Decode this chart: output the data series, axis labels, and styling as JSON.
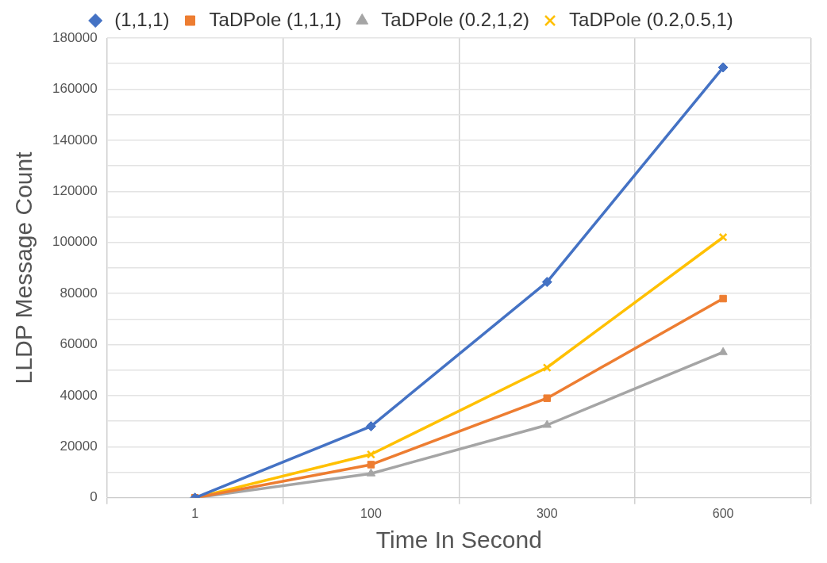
{
  "chart_data": {
    "type": "line",
    "xlabel": "Time In Second",
    "ylabel": "LLDP Message Count",
    "categories": [
      "1",
      "100",
      "300",
      "600"
    ],
    "series": [
      {
        "name": "(1,1,1)",
        "color": "#4472c4",
        "marker": "diamond",
        "values": [
          0,
          28000,
          84500,
          168500
        ]
      },
      {
        "name": "TaDPole (1,1,1)",
        "color": "#ed7d31",
        "marker": "square",
        "values": [
          0,
          13000,
          39000,
          78000
        ]
      },
      {
        "name": "TaDPole (0.2,1,2)",
        "color": "#a5a5a5",
        "marker": "triangle",
        "values": [
          0,
          9500,
          28500,
          57000
        ]
      },
      {
        "name": "TaDPole (0.2,0.5,1)",
        "color": "#ffc000",
        "marker": "cross",
        "values": [
          0,
          17000,
          51000,
          102000
        ]
      }
    ],
    "ylim": [
      0,
      180000
    ],
    "yticks": [
      0,
      {
        "value": 10000,
        "label": null
      },
      20000,
      {
        "value": 30000,
        "label": null
      },
      40000,
      {
        "value": 50000,
        "label": null
      },
      60000,
      {
        "value": 70000,
        "label": null
      },
      80000,
      {
        "value": 90000,
        "label": null
      },
      100000,
      {
        "value": 110000,
        "label": null
      },
      120000,
      {
        "value": 130000,
        "label": null
      },
      140000,
      {
        "value": 150000,
        "label": null
      },
      160000,
      {
        "value": 170000,
        "label": null
      },
      180000
    ],
    "grid": true,
    "legend": "top",
    "line_style": "solid"
  }
}
